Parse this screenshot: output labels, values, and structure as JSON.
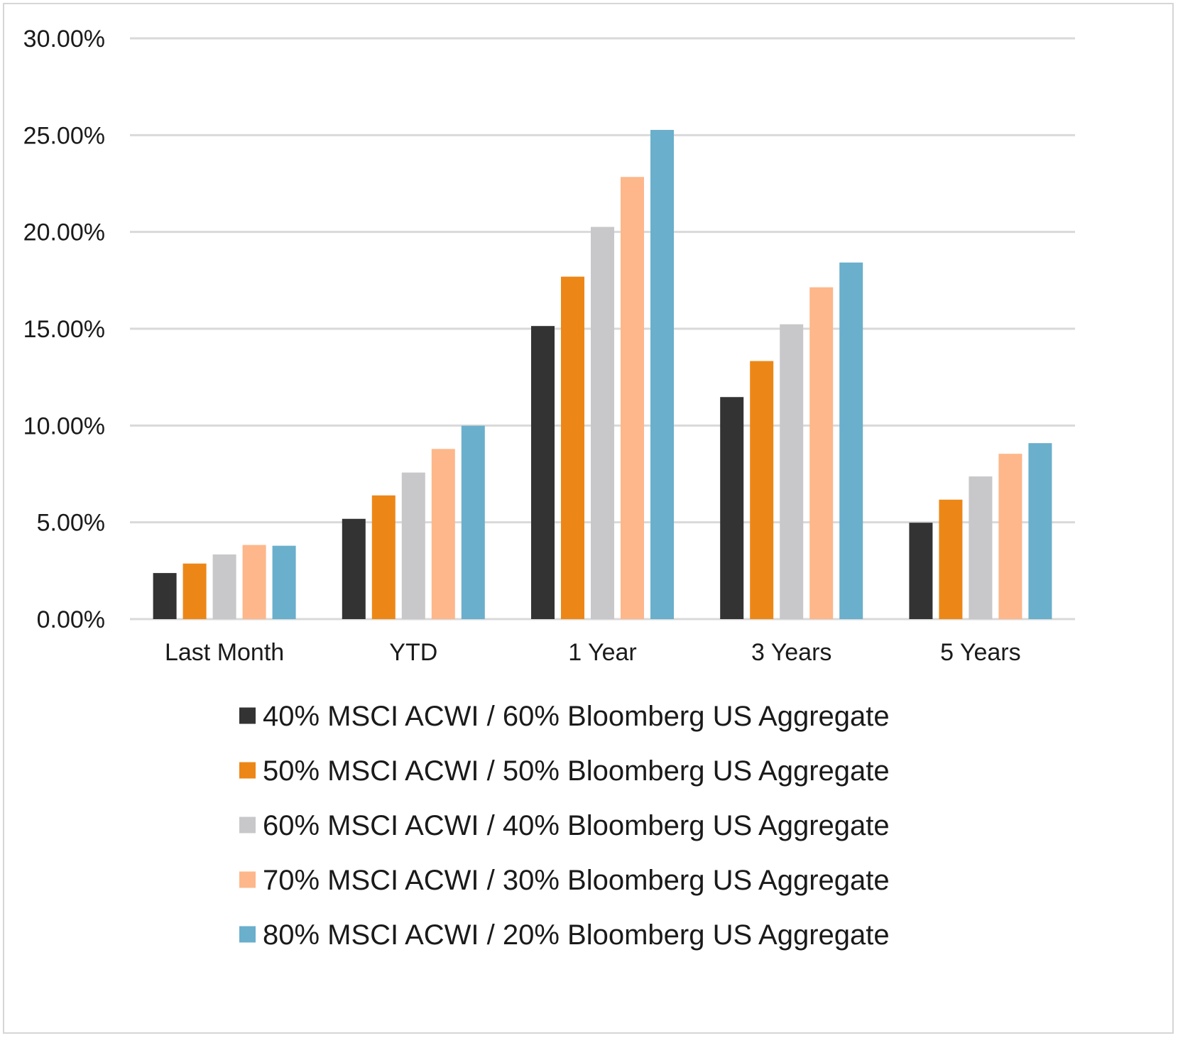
{
  "chart_data": {
    "type": "bar",
    "title": "",
    "xlabel": "",
    "ylabel": "",
    "ylim": [
      0,
      30
    ],
    "y_tick_values": [
      0,
      5,
      10,
      15,
      20,
      25,
      30
    ],
    "y_tick_labels": [
      "0.00%",
      "5.00%",
      "10.00%",
      "15.00%",
      "20.00%",
      "25.00%",
      "30.00%"
    ],
    "grid": true,
    "legend_position": "bottom",
    "categories": [
      "Last Month",
      "YTD",
      "1 Year",
      "3 Years",
      "5 Years"
    ],
    "series": [
      {
        "name": "40% MSCI ACWI / 60% Bloomberg US Aggregate",
        "color": "#333333",
        "values": [
          2.38,
          5.18,
          15.14,
          11.47,
          4.98
        ]
      },
      {
        "name": "50% MSCI ACWI / 50% Bloomberg US Aggregate",
        "color": "#ec8717",
        "values": [
          2.87,
          6.39,
          17.69,
          13.33,
          6.17
        ]
      },
      {
        "name": "60% MSCI ACWI / 40% Bloomberg US Aggregate",
        "color": "#c8c8ca",
        "values": [
          3.34,
          7.57,
          20.26,
          15.23,
          7.37
        ]
      },
      {
        "name": "70% MSCI ACWI / 30% Bloomberg US Aggregate",
        "color": "#fdb78a",
        "values": [
          3.83,
          8.79,
          22.84,
          17.14,
          8.54
        ]
      },
      {
        "name": "80% MSCI ACWI / 20% Bloomberg US Aggregate",
        "color": "#6aafcc",
        "values": [
          3.79,
          9.99,
          25.27,
          18.42,
          9.09
        ]
      }
    ]
  }
}
